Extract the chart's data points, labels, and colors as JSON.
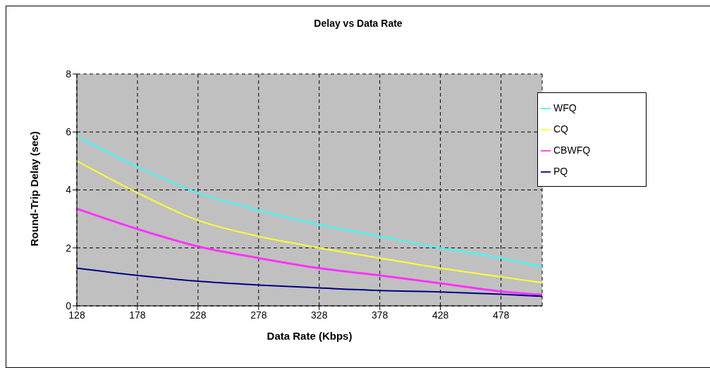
{
  "chart_data": {
    "type": "line",
    "title": "Delay vs Data Rate",
    "xlabel": "Data Rate (Kbps)",
    "ylabel": "Round-Trip Delay (sec)",
    "x": [
      128,
      178,
      228,
      278,
      328,
      378,
      428,
      478,
      512
    ],
    "series": [
      {
        "name": "WFQ",
        "color": "#33ffff",
        "values": [
          5.85,
          4.8,
          3.9,
          3.3,
          2.8,
          2.4,
          2.0,
          1.65,
          1.35
        ]
      },
      {
        "name": "CQ",
        "color": "#ffff33",
        "values": [
          5.0,
          3.9,
          2.95,
          2.4,
          2.0,
          1.65,
          1.3,
          1.0,
          0.8
        ]
      },
      {
        "name": "CBWFQ",
        "color": "#ff33ff",
        "values": [
          3.35,
          2.65,
          2.05,
          1.65,
          1.3,
          1.05,
          0.78,
          0.5,
          0.38
        ]
      },
      {
        "name": "PQ",
        "color": "#000080",
        "values": [
          1.3,
          1.05,
          0.85,
          0.72,
          0.62,
          0.53,
          0.48,
          0.4,
          0.33
        ]
      }
    ],
    "xlim": [
      128,
      512
    ],
    "xticks": [
      128,
      178,
      228,
      278,
      328,
      378,
      428,
      478
    ],
    "ylim": [
      0,
      8
    ],
    "yticks": [
      0,
      2,
      4,
      6,
      8
    ],
    "grid": true,
    "legend": "top right",
    "marker": "none",
    "line_style": "solid"
  }
}
